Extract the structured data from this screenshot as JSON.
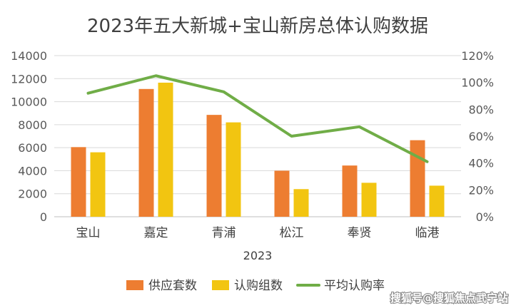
{
  "chart_data": {
    "type": "bar",
    "title": "2023年五大新城+宝山新房总体认购数据",
    "categories": [
      "宝山",
      "嘉定",
      "青浦",
      "松江",
      "奉贤",
      "临港"
    ],
    "category_group_label": "2023",
    "series": [
      {
        "name": "供应套数",
        "type": "bar",
        "axis": "left",
        "color": "#ED7D31",
        "values": [
          6050,
          11100,
          8850,
          4000,
          4450,
          6650
        ]
      },
      {
        "name": "认购组数",
        "type": "bar",
        "axis": "left",
        "color": "#F2C511",
        "values": [
          5600,
          11650,
          8200,
          2400,
          2950,
          2700
        ]
      },
      {
        "name": "平均认购率",
        "type": "line",
        "axis": "right",
        "color": "#70AD47",
        "values": [
          0.92,
          1.05,
          0.93,
          0.6,
          0.67,
          0.41
        ]
      }
    ],
    "y_left": {
      "min": 0,
      "max": 14000,
      "step": 2000,
      "ticks": [
        "0",
        "2000",
        "4000",
        "6000",
        "8000",
        "10000",
        "12000",
        "14000"
      ]
    },
    "y_right": {
      "min": 0,
      "max": 1.2,
      "step": 0.2,
      "ticks": [
        "0%",
        "20%",
        "40%",
        "60%",
        "80%",
        "100%",
        "120%"
      ]
    },
    "grid": true,
    "legend_position": "bottom"
  },
  "watermark": "搜狐号@搜狐焦点武宁站"
}
